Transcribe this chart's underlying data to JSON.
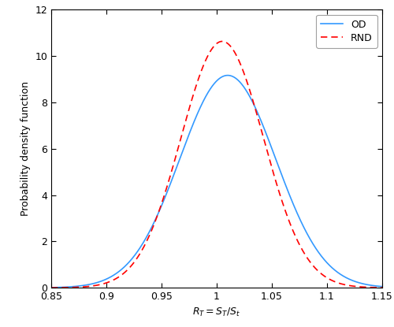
{
  "xlim": [
    0.85,
    1.15
  ],
  "ylim": [
    0,
    12
  ],
  "xticks": [
    0.85,
    0.9,
    0.95,
    1.0,
    1.05,
    1.1,
    1.15
  ],
  "xtick_labels": [
    "0.85",
    "0.9",
    "0.95",
    "1",
    "1.05",
    "1.1",
    "1.15"
  ],
  "yticks": [
    0,
    2,
    4,
    6,
    8,
    10,
    12
  ],
  "ytick_labels": [
    "0",
    "2",
    "4",
    "6",
    "8",
    "10",
    "12"
  ],
  "xlabel": "$R_T=S_T/S_t$",
  "ylabel": "Probability density function",
  "od_color": "#3399FF",
  "rnd_color": "#FF0000",
  "od_mu": 1.01,
  "od_sigma": 0.0435,
  "rnd_mu": 1.005,
  "rnd_sigma": 0.0375,
  "legend_labels": [
    "OD",
    "RND"
  ],
  "background_color": "#ffffff",
  "axis_fontsize": 9,
  "tick_fontsize": 9,
  "legend_fontsize": 9
}
